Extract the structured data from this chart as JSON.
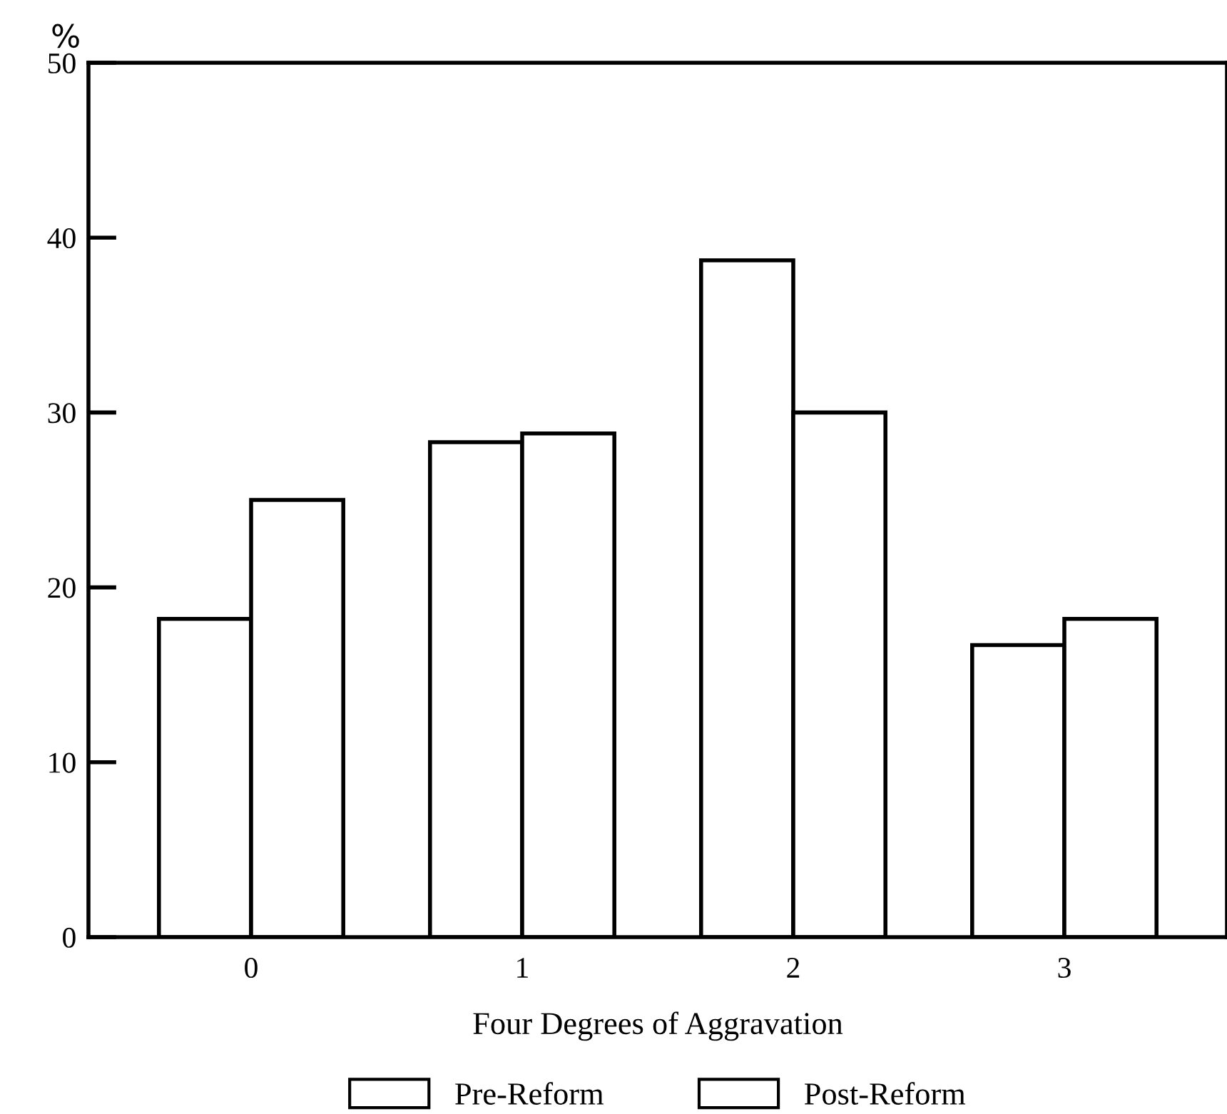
{
  "chart_data": {
    "type": "bar",
    "ylabel": "%",
    "xlabel": "Four Degrees of Aggravation",
    "categories": [
      "0",
      "1",
      "2",
      "3"
    ],
    "series": [
      {
        "name": "Pre-Reform",
        "color": "#ffffff",
        "values": [
          18.2,
          28.3,
          38.7,
          16.7
        ]
      },
      {
        "name": "Post-Reform",
        "color": "#ffffff",
        "values": [
          25.0,
          28.8,
          30.0,
          18.2
        ]
      }
    ],
    "ylim": [
      0,
      50
    ],
    "yticks": [
      0,
      10,
      20,
      30,
      40,
      50
    ],
    "grid": false,
    "legend": "bottom"
  }
}
